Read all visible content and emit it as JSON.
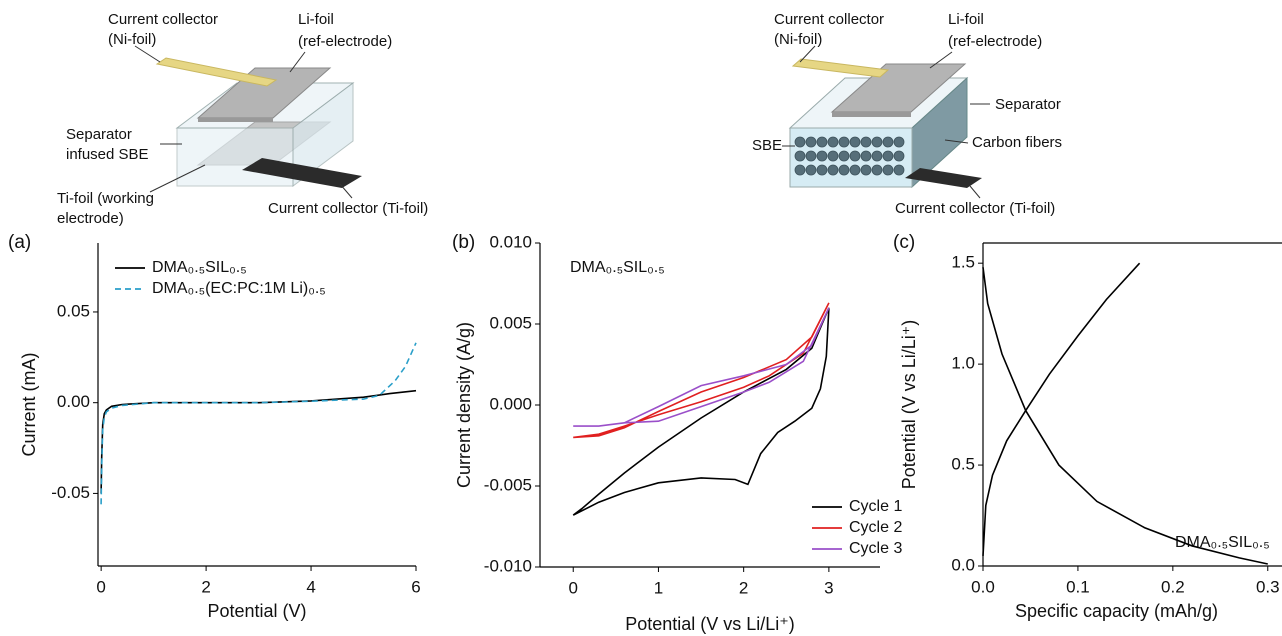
{
  "diagrams": [
    {
      "labels": [
        {
          "lines": [
            "Current collector",
            "(Ni-foil)"
          ]
        },
        {
          "lines": [
            "Li-foil",
            "(ref-electrode)"
          ]
        },
        {
          "lines": [
            "Separator",
            "infused SBE"
          ]
        },
        {
          "lines": [
            "Ti-foil (working",
            "electrode)"
          ]
        },
        {
          "lines": [
            "Current collector (Ti-foil)"
          ]
        }
      ]
    },
    {
      "labels": [
        {
          "lines": [
            "Current collector",
            "(Ni-foil)"
          ]
        },
        {
          "lines": [
            "Li-foil",
            "(ref-electrode)"
          ]
        },
        {
          "lines": [
            "Separator"
          ]
        },
        {
          "lines": [
            "Carbon fibers"
          ]
        },
        {
          "lines": [
            "SBE"
          ]
        },
        {
          "lines": [
            "Current collector (Ti-foil)"
          ]
        }
      ]
    }
  ],
  "chart_data": [
    {
      "type": "line",
      "panel_label": "(a)",
      "xlabel": "Potential (V)",
      "ylabel": "Current (mA)",
      "xlim": [
        -0.06,
        6
      ],
      "ylim": [
        -0.09,
        0.088
      ],
      "xticks": [
        0,
        2,
        4,
        6
      ],
      "yticks": [
        0.05,
        {
          "value": 0,
          "label": "0.00"
        },
        -0.05
      ],
      "legend": "upper left",
      "series": [
        {
          "name": "DMA₀.₅SIL₀.₅",
          "color": "#000000",
          "linestyle": "solid",
          "x": [
            0,
            0.01,
            0.03,
            0.06,
            0.1,
            0.2,
            0.4,
            1,
            2,
            3,
            4,
            5,
            5.5,
            6
          ],
          "values": [
            -0.05,
            -0.03,
            -0.012,
            -0.006,
            -0.004,
            -0.002,
            -0.001,
            0,
            0,
            0,
            0.001,
            0.003,
            0.005,
            0.0066
          ]
        },
        {
          "name": "DMA₀.₅(EC:PC:1M Li)₀.₅",
          "color": "#2a9fc9",
          "linestyle": "dashed",
          "x": [
            0,
            0.01,
            0.03,
            0.06,
            0.1,
            0.2,
            0.4,
            1,
            2,
            3,
            4,
            5,
            5.3,
            5.6,
            5.8,
            6
          ],
          "values": [
            -0.056,
            -0.035,
            -0.015,
            -0.008,
            -0.005,
            -0.003,
            -0.0015,
            0,
            0,
            0,
            0.0008,
            0.002,
            0.004,
            0.012,
            0.02,
            0.033
          ]
        }
      ]
    },
    {
      "type": "line",
      "panel_label": "(b)",
      "xlabel": "Potential (V vs Li/Li⁺)",
      "ylabel": "Current density (A/g)",
      "annotation": "DMA₀.₅SIL₀.₅",
      "xlim": [
        -0.39,
        3.6
      ],
      "ylim": [
        -0.01,
        0.01
      ],
      "xticks": [
        0,
        1,
        2,
        3
      ],
      "yticks": [
        {
          "value": -0.01,
          "label": "-0.010"
        },
        {
          "value": -0.005,
          "label": "-0.005"
        },
        {
          "value": 0,
          "label": "0.000"
        },
        {
          "value": 0.005,
          "label": "0.005"
        },
        {
          "value": 0.01,
          "label": "0.010"
        }
      ],
      "legend": "lower right",
      "series": [
        {
          "name": "Cycle 1",
          "color": "#000000",
          "x": [
            0,
            0.3,
            0.6,
            1,
            1.5,
            1.9,
            2.05,
            2.2,
            2.4,
            2.6,
            2.8,
            2.9,
            2.97,
            3,
            2.8,
            2.5,
            2,
            1.5,
            1,
            0.6,
            0.3,
            0.1,
            0
          ],
          "values": [
            -0.0068,
            -0.006,
            -0.0054,
            -0.0048,
            -0.0045,
            -0.0046,
            -0.0049,
            -0.003,
            -0.0017,
            -0.001,
            -0.0002,
            0.001,
            0.003,
            0.006,
            0.0035,
            0.0022,
            0.0008,
            -0.0008,
            -0.0026,
            -0.0042,
            -0.0055,
            -0.0064,
            -0.0068
          ]
        },
        {
          "name": "Cycle 2",
          "color": "#e02020",
          "x": [
            0,
            0.3,
            0.6,
            1,
            1.5,
            2,
            2.5,
            2.8,
            3,
            2.7,
            2.3,
            2,
            1.5,
            1,
            0.6,
            0.3,
            0
          ],
          "values": [
            -0.002,
            -0.0019,
            -0.0014,
            -0.0004,
            0.0008,
            0.0017,
            0.0028,
            0.0042,
            0.0063,
            0.0032,
            0.0018,
            0.0011,
            0.0002,
            -0.0006,
            -0.0013,
            -0.0018,
            -0.002
          ]
        },
        {
          "name": "Cycle 3",
          "color": "#9a4fc9",
          "x": [
            0,
            0.3,
            0.6,
            1,
            1.5,
            2,
            2.5,
            2.8,
            3,
            2.7,
            2.3,
            2,
            1.5,
            1,
            0.6,
            0.3,
            0
          ],
          "values": [
            -0.0013,
            -0.0013,
            -0.0011,
            -0.0001,
            0.0012,
            0.0018,
            0.0025,
            0.0037,
            0.006,
            0.0027,
            0.0014,
            0.0008,
            -0.0001,
            -0.001,
            -0.0011,
            -0.0013,
            -0.0013
          ]
        }
      ]
    },
    {
      "type": "line",
      "panel_label": "(c)",
      "xlabel": "Specific capacity (mAh/g)",
      "ylabel": "Potential (V vs Li/Li⁺)",
      "annotation": "DMA₀.₅SIL₀.₅",
      "xlim": [
        0,
        0.315
      ],
      "ylim": [
        0,
        1.6
      ],
      "xticks": [
        {
          "value": 0,
          "label": "0.0"
        },
        0.1,
        0.2,
        0.3
      ],
      "yticks": [
        {
          "value": 0,
          "label": "0.0"
        },
        0.5,
        {
          "value": 1,
          "label": "1.0"
        },
        1.5
      ],
      "series": [
        {
          "color": "#000000",
          "x": [
            0,
            0.005,
            0.02,
            0.045,
            0.08,
            0.12,
            0.17,
            0.22,
            0.27,
            0.3
          ],
          "values": [
            1.48,
            1.3,
            1.05,
            0.77,
            0.5,
            0.32,
            0.19,
            0.1,
            0.04,
            0.01
          ]
        },
        {
          "color": "#000000",
          "x": [
            0,
            0.003,
            0.01,
            0.025,
            0.045,
            0.07,
            0.1,
            0.13,
            0.165
          ],
          "values": [
            0.05,
            0.3,
            0.45,
            0.62,
            0.77,
            0.95,
            1.14,
            1.32,
            1.5
          ]
        }
      ]
    }
  ]
}
